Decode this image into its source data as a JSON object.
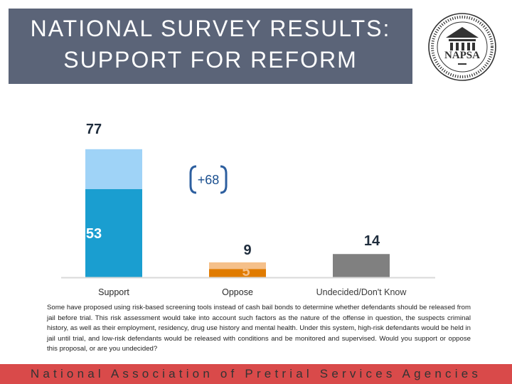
{
  "slide": {
    "title": "NATIONAL SURVEY RESULTS:  SUPPORT FOR REFORM",
    "logo_text": "NAPSA",
    "footer": "National Association of Pretrial Services Agencies",
    "description": "Some have proposed using risk-based screening tools instead of cash bail bonds to determine whether defendants should be released from jail before trial. This risk assessment would take into account such factors as the nature of the offense in question, the suspects criminal history, as well as their employment, residency, drug use history and mental health. Under this system, high-risk defendants would be held in jail until trial, and low-risk defendants would be released with conditions and be monitored and supervised.  Would you support or oppose this proposal, or are you undecided?"
  },
  "chart_data": {
    "type": "bar",
    "stacked": true,
    "categories": [
      "Support",
      "Oppose",
      "Undecided/Don't Know"
    ],
    "totals": [
      77,
      9,
      14
    ],
    "strong": [
      53,
      5,
      null
    ],
    "ylim": [
      0,
      100
    ],
    "annotation": "+68",
    "colors": {
      "support_strong": "#1a9ed0",
      "support_total": "#9fd3f7",
      "oppose_strong": "#e07b00",
      "oppose_total": "#f5c08a",
      "undecided": "#808080",
      "bracket": "#2d5f9f",
      "annotation": "#1a4f8f"
    }
  }
}
